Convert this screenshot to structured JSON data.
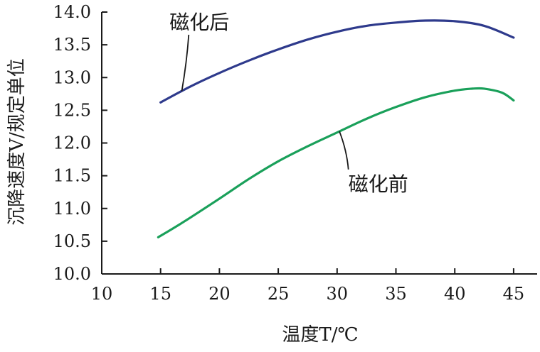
{
  "chart_data": {
    "type": "line",
    "xlabel": "温度T/℃",
    "ylabel": "沉降速度V/规定单位",
    "xlim": [
      10,
      47
    ],
    "ylim": [
      10.0,
      14.0
    ],
    "x_ticks": [
      "10",
      "15",
      "20",
      "25",
      "30",
      "35",
      "40",
      "45"
    ],
    "y_ticks": [
      "10.0",
      "10.5",
      "11.0",
      "11.5",
      "12.0",
      "12.5",
      "13.0",
      "13.5",
      "14.0"
    ],
    "grid": false,
    "series": [
      {
        "name": "磁化后",
        "color": "#2e3a8c",
        "x": [
          15,
          17.5,
          20,
          22.5,
          25,
          27.5,
          30,
          32.5,
          35,
          37.5,
          40,
          42.5,
          45
        ],
        "y": [
          12.62,
          12.86,
          13.07,
          13.26,
          13.43,
          13.58,
          13.7,
          13.79,
          13.84,
          13.87,
          13.86,
          13.79,
          13.61
        ]
      },
      {
        "name": "磁化前",
        "color": "#1aa05a",
        "x": [
          14.8,
          17,
          20,
          22.5,
          25,
          27.5,
          30,
          32.5,
          35,
          37.5,
          40,
          41.5,
          42.5,
          44,
          45
        ],
        "y": [
          10.56,
          10.8,
          11.15,
          11.45,
          11.72,
          11.95,
          12.16,
          12.37,
          12.55,
          12.7,
          12.8,
          12.83,
          12.83,
          12.77,
          12.65
        ]
      }
    ],
    "annotations": [
      {
        "text": "磁化后",
        "series": 0,
        "at_x": 16.8,
        "label_x": 18.3,
        "label_y": 13.74
      },
      {
        "text": "磁化前",
        "series": 1,
        "at_x": 30.2,
        "label_x": 33.5,
        "label_y": 11.27
      }
    ]
  }
}
